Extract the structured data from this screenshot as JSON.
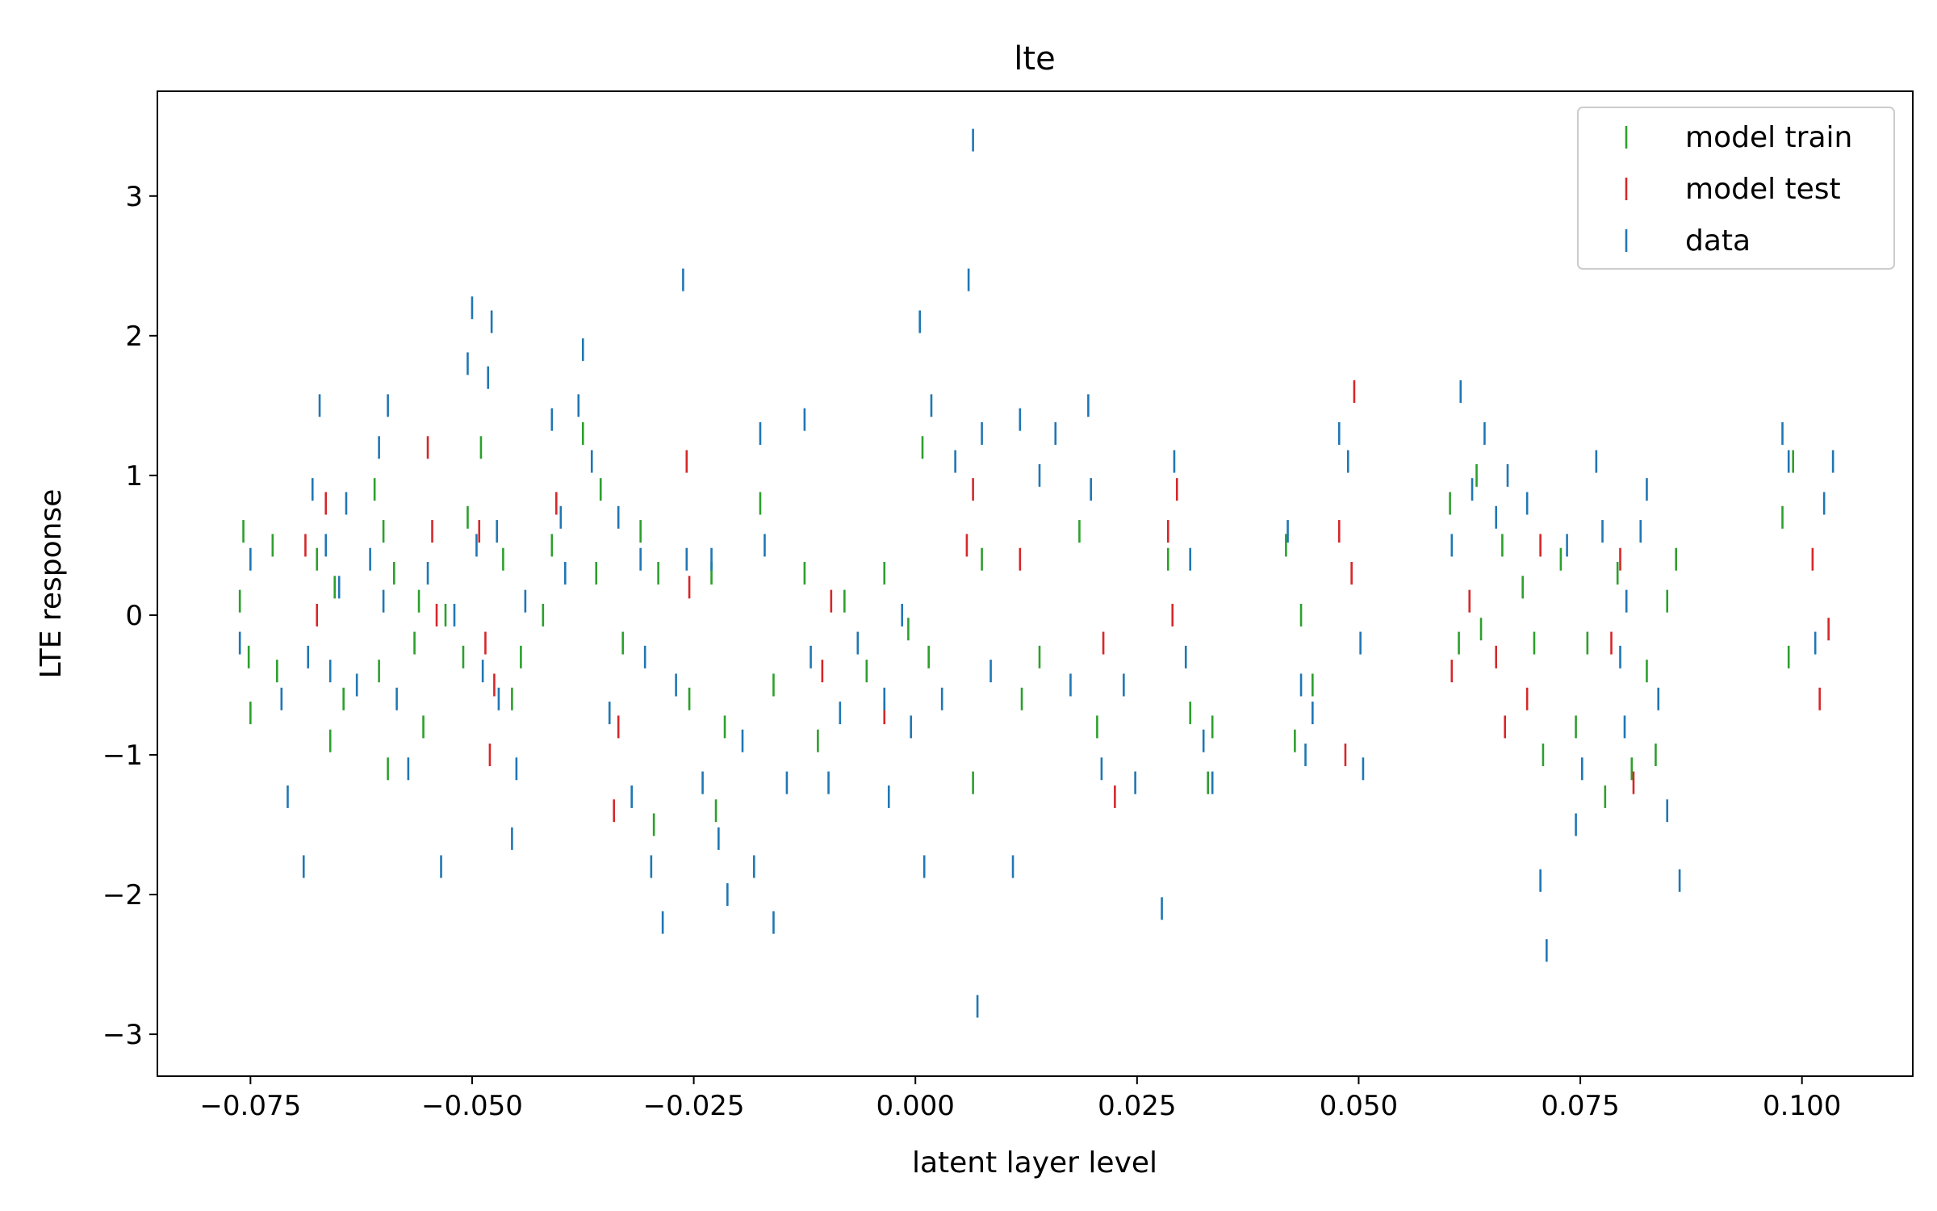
{
  "chart_data": {
    "type": "scatter",
    "title": "lte",
    "xlabel": "latent layer level",
    "ylabel": "LTE response",
    "xlim": [
      -0.0855,
      0.1125
    ],
    "ylim": [
      -3.3,
      3.75
    ],
    "xticks": [
      -0.075,
      -0.05,
      -0.025,
      0.0,
      0.025,
      0.05,
      0.075,
      0.1
    ],
    "xtick_labels": [
      "−0.075",
      "−0.050",
      "−0.025",
      "0.000",
      "0.025",
      "0.050",
      "0.075",
      "0.100"
    ],
    "yticks": [
      -3,
      -2,
      -1,
      0,
      1,
      2,
      3
    ],
    "ytick_labels": [
      "−3",
      "−2",
      "−1",
      "0",
      "1",
      "2",
      "3"
    ],
    "marker": "vertical-tick",
    "legend": {
      "position": "upper-right"
    },
    "series": [
      {
        "name": "model train",
        "color": "#2ca02c",
        "points": [
          [
            -0.0762,
            0.1
          ],
          [
            -0.0758,
            0.6
          ],
          [
            -0.0752,
            -0.3
          ],
          [
            -0.075,
            -0.7
          ],
          [
            -0.0725,
            0.5
          ],
          [
            -0.072,
            -0.4
          ],
          [
            -0.0675,
            0.4
          ],
          [
            -0.066,
            -0.9
          ],
          [
            -0.0655,
            0.2
          ],
          [
            -0.0645,
            -0.6
          ],
          [
            -0.061,
            0.9
          ],
          [
            -0.0605,
            -0.4
          ],
          [
            -0.06,
            0.6
          ],
          [
            -0.0595,
            -1.1
          ],
          [
            -0.0588,
            0.3
          ],
          [
            -0.0565,
            -0.2
          ],
          [
            -0.056,
            0.1
          ],
          [
            -0.0555,
            -0.8
          ],
          [
            -0.053,
            0.0
          ],
          [
            -0.051,
            -0.3
          ],
          [
            -0.0505,
            0.7
          ],
          [
            -0.049,
            1.2
          ],
          [
            -0.0465,
            0.4
          ],
          [
            -0.0455,
            -0.6
          ],
          [
            -0.0445,
            -0.3
          ],
          [
            -0.042,
            0.0
          ],
          [
            -0.041,
            0.5
          ],
          [
            -0.0375,
            1.3
          ],
          [
            -0.036,
            0.3
          ],
          [
            -0.0355,
            0.9
          ],
          [
            -0.033,
            -0.2
          ],
          [
            -0.031,
            0.6
          ],
          [
            -0.0295,
            -1.5
          ],
          [
            -0.029,
            0.3
          ],
          [
            -0.0255,
            -0.6
          ],
          [
            -0.023,
            0.3
          ],
          [
            -0.0225,
            -1.4
          ],
          [
            -0.0215,
            -0.8
          ],
          [
            -0.0175,
            0.8
          ],
          [
            -0.016,
            -0.5
          ],
          [
            -0.0125,
            0.3
          ],
          [
            -0.011,
            -0.9
          ],
          [
            -0.008,
            0.1
          ],
          [
            -0.0055,
            -0.4
          ],
          [
            -0.0035,
            0.3
          ],
          [
            -0.0008,
            -0.1
          ],
          [
            0.0008,
            1.2
          ],
          [
            0.0015,
            -0.3
          ],
          [
            0.0065,
            -1.2
          ],
          [
            0.0075,
            0.4
          ],
          [
            0.012,
            -0.6
          ],
          [
            0.014,
            -0.3
          ],
          [
            0.0185,
            0.6
          ],
          [
            0.0205,
            -0.8
          ],
          [
            0.0285,
            0.4
          ],
          [
            0.031,
            -0.7
          ],
          [
            0.033,
            -1.2
          ],
          [
            0.0335,
            -0.8
          ],
          [
            0.0418,
            0.5
          ],
          [
            0.0428,
            -0.9
          ],
          [
            0.0435,
            0.0
          ],
          [
            0.0448,
            -0.5
          ],
          [
            0.0603,
            0.8
          ],
          [
            0.0613,
            -0.2
          ],
          [
            0.0633,
            1.0
          ],
          [
            0.0638,
            -0.1
          ],
          [
            0.0662,
            0.5
          ],
          [
            0.0685,
            0.2
          ],
          [
            0.0698,
            -0.2
          ],
          [
            0.0708,
            -1.0
          ],
          [
            0.0728,
            0.4
          ],
          [
            0.0745,
            -0.8
          ],
          [
            0.0758,
            -0.2
          ],
          [
            0.0778,
            -1.3
          ],
          [
            0.0792,
            0.3
          ],
          [
            0.0808,
            -1.1
          ],
          [
            0.0825,
            -0.4
          ],
          [
            0.0835,
            -1.0
          ],
          [
            0.0848,
            0.1
          ],
          [
            0.0858,
            0.4
          ],
          [
            0.0978,
            0.7
          ],
          [
            0.0985,
            -0.3
          ],
          [
            0.099,
            1.1
          ]
        ]
      },
      {
        "name": "model test",
        "color": "#d62728",
        "points": [
          [
            -0.0688,
            0.5
          ],
          [
            -0.0675,
            0.0
          ],
          [
            -0.0665,
            0.8
          ],
          [
            -0.055,
            1.2
          ],
          [
            -0.0545,
            0.6
          ],
          [
            -0.054,
            0.0
          ],
          [
            -0.0492,
            0.6
          ],
          [
            -0.0485,
            -0.2
          ],
          [
            -0.048,
            -1.0
          ],
          [
            -0.0475,
            -0.5
          ],
          [
            -0.0405,
            0.8
          ],
          [
            -0.034,
            -1.4
          ],
          [
            -0.0335,
            -0.8
          ],
          [
            -0.0255,
            0.2
          ],
          [
            -0.0258,
            1.1
          ],
          [
            -0.0105,
            -0.4
          ],
          [
            -0.0095,
            0.1
          ],
          [
            -0.0035,
            -0.7
          ],
          [
            0.0058,
            0.5
          ],
          [
            0.0065,
            0.9
          ],
          [
            0.0118,
            0.4
          ],
          [
            0.0212,
            -0.2
          ],
          [
            0.0225,
            -1.3
          ],
          [
            0.0285,
            0.6
          ],
          [
            0.029,
            0.0
          ],
          [
            0.0295,
            0.9
          ],
          [
            0.0478,
            0.6
          ],
          [
            0.0485,
            -1.0
          ],
          [
            0.0492,
            0.3
          ],
          [
            0.0495,
            1.6
          ],
          [
            0.0605,
            -0.4
          ],
          [
            0.0625,
            0.1
          ],
          [
            0.0655,
            -0.3
          ],
          [
            0.0665,
            -0.8
          ],
          [
            0.069,
            -0.6
          ],
          [
            0.0705,
            0.5
          ],
          [
            0.0785,
            -0.2
          ],
          [
            0.0795,
            0.4
          ],
          [
            0.081,
            -1.2
          ],
          [
            0.1012,
            0.4
          ],
          [
            0.102,
            -0.6
          ],
          [
            0.103,
            -0.1
          ]
        ]
      },
      {
        "name": "data",
        "color": "#1f77b4",
        "points": [
          [
            -0.0762,
            -0.2
          ],
          [
            -0.075,
            0.4
          ],
          [
            -0.0715,
            -0.6
          ],
          [
            -0.0708,
            -1.3
          ],
          [
            -0.069,
            -1.8
          ],
          [
            -0.0685,
            -0.3
          ],
          [
            -0.068,
            0.9
          ],
          [
            -0.0672,
            1.5
          ],
          [
            -0.0665,
            0.5
          ],
          [
            -0.066,
            -0.4
          ],
          [
            -0.065,
            0.2
          ],
          [
            -0.0642,
            0.8
          ],
          [
            -0.063,
            -0.5
          ],
          [
            -0.0615,
            0.4
          ],
          [
            -0.0605,
            1.2
          ],
          [
            -0.06,
            0.1
          ],
          [
            -0.0595,
            1.5
          ],
          [
            -0.0585,
            -0.6
          ],
          [
            -0.0572,
            -1.1
          ],
          [
            -0.055,
            0.3
          ],
          [
            -0.0535,
            -1.8
          ],
          [
            -0.052,
            0.0
          ],
          [
            -0.0505,
            1.8
          ],
          [
            -0.05,
            2.2
          ],
          [
            -0.0495,
            0.5
          ],
          [
            -0.0488,
            -0.4
          ],
          [
            -0.0482,
            1.7
          ],
          [
            -0.0478,
            2.1
          ],
          [
            -0.0472,
            0.6
          ],
          [
            -0.047,
            -0.6
          ],
          [
            -0.0455,
            -1.6
          ],
          [
            -0.045,
            -1.1
          ],
          [
            -0.044,
            0.1
          ],
          [
            -0.041,
            1.4
          ],
          [
            -0.04,
            0.7
          ],
          [
            -0.0395,
            0.3
          ],
          [
            -0.038,
            1.5
          ],
          [
            -0.0375,
            1.9
          ],
          [
            -0.0365,
            1.1
          ],
          [
            -0.0345,
            -0.7
          ],
          [
            -0.0335,
            0.7
          ],
          [
            -0.032,
            -1.3
          ],
          [
            -0.031,
            0.4
          ],
          [
            -0.0305,
            -0.3
          ],
          [
            -0.0298,
            -1.8
          ],
          [
            -0.0285,
            -2.2
          ],
          [
            -0.027,
            -0.5
          ],
          [
            -0.0262,
            2.4
          ],
          [
            -0.0258,
            0.4
          ],
          [
            -0.024,
            -1.2
          ],
          [
            -0.023,
            0.4
          ],
          [
            -0.0222,
            -1.6
          ],
          [
            -0.0212,
            -2.0
          ],
          [
            -0.0195,
            -0.9
          ],
          [
            -0.0182,
            -1.8
          ],
          [
            -0.0175,
            1.3
          ],
          [
            -0.017,
            0.5
          ],
          [
            -0.016,
            -2.2
          ],
          [
            -0.0145,
            -1.2
          ],
          [
            -0.0125,
            1.4
          ],
          [
            -0.0118,
            -0.3
          ],
          [
            -0.0098,
            -1.2
          ],
          [
            -0.0085,
            -0.7
          ],
          [
            -0.0065,
            -0.2
          ],
          [
            -0.0035,
            -0.6
          ],
          [
            -0.003,
            -1.3
          ],
          [
            -0.0015,
            0.0
          ],
          [
            -0.0005,
            -0.8
          ],
          [
            0.0005,
            2.1
          ],
          [
            0.001,
            -1.8
          ],
          [
            0.0018,
            1.5
          ],
          [
            0.003,
            -0.6
          ],
          [
            0.0045,
            1.1
          ],
          [
            0.006,
            2.4
          ],
          [
            0.0065,
            3.4
          ],
          [
            0.007,
            -2.8
          ],
          [
            0.0075,
            1.3
          ],
          [
            0.0085,
            -0.4
          ],
          [
            0.011,
            -1.8
          ],
          [
            0.0118,
            1.4
          ],
          [
            0.014,
            1.0
          ],
          [
            0.0158,
            1.3
          ],
          [
            0.0175,
            -0.5
          ],
          [
            0.0195,
            1.5
          ],
          [
            0.0198,
            0.9
          ],
          [
            0.021,
            -1.1
          ],
          [
            0.0235,
            -0.5
          ],
          [
            0.0248,
            -1.2
          ],
          [
            0.0278,
            -2.1
          ],
          [
            0.0292,
            1.1
          ],
          [
            0.0305,
            -0.3
          ],
          [
            0.031,
            0.4
          ],
          [
            0.0325,
            -0.9
          ],
          [
            0.0335,
            -1.2
          ],
          [
            0.042,
            0.6
          ],
          [
            0.0435,
            -0.5
          ],
          [
            0.044,
            -1.0
          ],
          [
            0.0448,
            -0.7
          ],
          [
            0.0478,
            1.3
          ],
          [
            0.0488,
            1.1
          ],
          [
            0.0502,
            -0.2
          ],
          [
            0.0505,
            -1.1
          ],
          [
            0.0605,
            0.5
          ],
          [
            0.0615,
            1.6
          ],
          [
            0.0628,
            0.9
          ],
          [
            0.0642,
            1.3
          ],
          [
            0.0655,
            0.7
          ],
          [
            0.0668,
            1.0
          ],
          [
            0.069,
            0.8
          ],
          [
            0.0705,
            -1.9
          ],
          [
            0.0712,
            -2.4
          ],
          [
            0.0735,
            0.5
          ],
          [
            0.0745,
            -1.5
          ],
          [
            0.0752,
            -1.1
          ],
          [
            0.0768,
            1.1
          ],
          [
            0.0775,
            0.6
          ],
          [
            0.0795,
            -0.3
          ],
          [
            0.08,
            -0.8
          ],
          [
            0.0802,
            0.1
          ],
          [
            0.0818,
            0.6
          ],
          [
            0.0825,
            0.9
          ],
          [
            0.0838,
            -0.6
          ],
          [
            0.0848,
            -1.4
          ],
          [
            0.0862,
            -1.9
          ],
          [
            0.0978,
            1.3
          ],
          [
            0.0985,
            1.1
          ],
          [
            0.1015,
            -0.2
          ],
          [
            0.1025,
            0.8
          ],
          [
            0.1035,
            1.1
          ]
        ]
      }
    ]
  }
}
